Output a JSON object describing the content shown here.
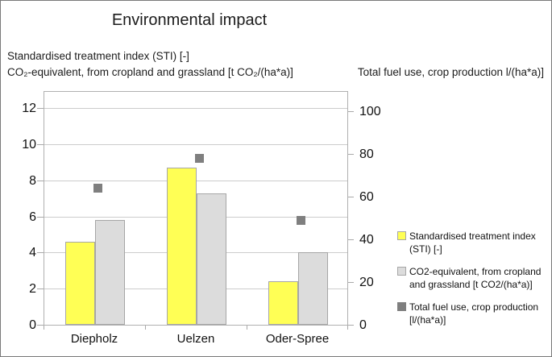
{
  "figure": {
    "title": "Environmental impact",
    "left_axis_header": [
      "Standardised treatment index (STI) [-]",
      "CO₂-equivalent, from cropland and grassland [t CO₂/(ha*a)]"
    ],
    "right_axis_header": "Total fuel use, crop production l/(ha*a)]"
  },
  "chart_data": {
    "type": "bar",
    "title": "Environmental impact",
    "categories": [
      "Diepholz",
      "Uelzen",
      "Oder-Spree"
    ],
    "series": [
      {
        "name": "Standardised treatment index (STI) [-]",
        "type": "bar",
        "axis": "left",
        "color": "#ffff55",
        "border_color": "#a6a6a6",
        "values": [
          4.6,
          8.7,
          2.4
        ]
      },
      {
        "name": "CO2-equivalent, from cropland and grassland [t CO2/(ha*a)]",
        "type": "bar",
        "axis": "left",
        "color": "#dcdcdc",
        "border_color": "#a6a6a6",
        "values": [
          5.8,
          7.3,
          4.0
        ]
      },
      {
        "name": "Total fuel use, crop production [l/(ha*a)]",
        "type": "square-marker",
        "axis": "right",
        "color": "#7f7f7f",
        "values": [
          64,
          78,
          49
        ]
      }
    ],
    "left_axis": {
      "min": 0,
      "max": 13,
      "ticks": [
        0,
        2,
        4,
        6,
        8,
        10,
        12
      ]
    },
    "right_axis": {
      "min": 0,
      "max": 110,
      "ticks": [
        0,
        20,
        40,
        60,
        80,
        100
      ]
    },
    "grid": true,
    "legend_position": "right",
    "legend": [
      {
        "lines": [
          "Standardised treatment index",
          "(STI) [-]"
        ]
      },
      {
        "lines": [
          "CO2-equivalent, from cropland",
          "and grassland [t CO2/(ha*a)]"
        ]
      },
      {
        "lines": [
          "Total fuel use, crop production",
          "[l/(ha*a)]"
        ]
      }
    ]
  }
}
